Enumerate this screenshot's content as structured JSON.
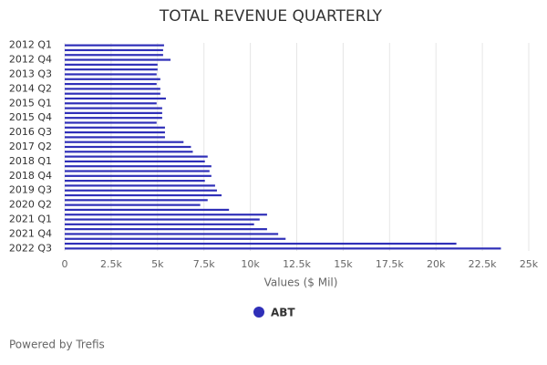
{
  "chart_data": {
    "type": "bar",
    "orientation": "horizontal",
    "title": "TOTAL REVENUE QUARTERLY",
    "x_label": "Values ($ Mil)",
    "categories": [
      "2012 Q1",
      null,
      null,
      "2012 Q4",
      null,
      null,
      "2013 Q3",
      null,
      null,
      "2014 Q2",
      null,
      null,
      "2015 Q1",
      null,
      null,
      "2015 Q4",
      null,
      null,
      "2016 Q3",
      null,
      null,
      "2017 Q2",
      null,
      null,
      "2018 Q1",
      null,
      null,
      "2018 Q4",
      null,
      null,
      "2019 Q3",
      null,
      null,
      "2020 Q2",
      null,
      null,
      "2021 Q1",
      null,
      null,
      "2021 Q4",
      null,
      null,
      "2022 Q3"
    ],
    "series": [
      {
        "name": "ABT",
        "color": "#2f2fb8",
        "values": [
          5350,
          5300,
          5300,
          5700,
          5000,
          5000,
          4950,
          5150,
          4950,
          5150,
          5150,
          5450,
          4950,
          5250,
          5250,
          5250,
          4950,
          5400,
          5400,
          5400,
          6400,
          6800,
          6900,
          7700,
          7550,
          7900,
          7800,
          7900,
          7550,
          8100,
          8200,
          8450,
          7700,
          7300,
          8850,
          10900,
          10500,
          10200,
          10900,
          11500,
          11900,
          21100,
          23500
        ]
      }
    ],
    "xlim": [
      0,
      25000
    ],
    "xticks": [
      0,
      {
        "value": 2500,
        "label": "2.5k"
      },
      {
        "value": 5000,
        "label": "5k"
      },
      {
        "value": 7500,
        "label": "7.5k"
      },
      {
        "value": 10000,
        "label": "10k"
      },
      {
        "value": 12500,
        "label": "12.5k"
      },
      {
        "value": 15000,
        "label": "15k"
      },
      {
        "value": 17500,
        "label": "17.5k"
      },
      {
        "value": 20000,
        "label": "20k"
      },
      {
        "value": 22500,
        "label": "22.5k"
      },
      {
        "value": 25000,
        "label": "25k"
      }
    ],
    "grid": true,
    "legend": "bottom"
  },
  "footer": "Powered by Trefis"
}
